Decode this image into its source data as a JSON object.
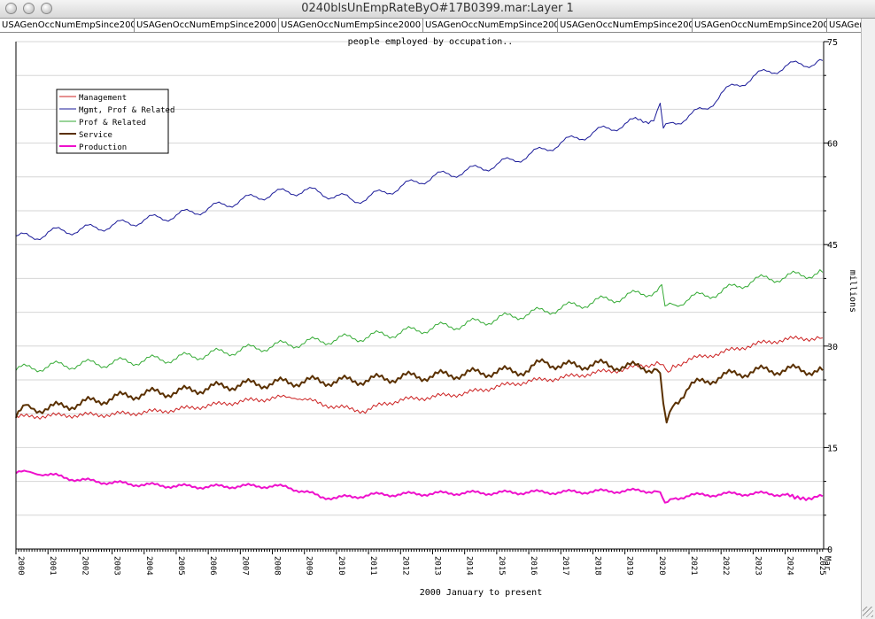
{
  "window": {
    "title": "0240blsUnEmpRateByO#17B0399.mar:Layer 1",
    "tabs": [
      "USAGenOccNumEmpSince2000",
      "USAGenOccNumEmpSince2000",
      "USAGenOccNumEmpSince2000",
      "USAGenOccNumEmpSince2000",
      "USAGenOccNumEmpSince2000",
      "USAGenOccNumEmpSince2000",
      "USAGenO"
    ]
  },
  "chart_data": {
    "type": "line",
    "title": "people employed by occupation..",
    "xlabel": "2000 January to present",
    "ylabel": "millions",
    "xlim": [
      2000.0,
      2025.2
    ],
    "ylim": [
      0,
      75
    ],
    "y_ticks": [
      "0",
      "15",
      "30",
      "45",
      "60",
      "75"
    ],
    "y_tick_values": [
      0,
      15,
      30,
      45,
      60,
      75
    ],
    "x_ticks": [
      "2000",
      "2001",
      "2002",
      "2003",
      "2004",
      "2005",
      "2006",
      "2007",
      "2008",
      "2009",
      "2010",
      "2011",
      "2012",
      "2013",
      "2014",
      "2015",
      "2016",
      "2017",
      "2018",
      "2019",
      "2020",
      "2021",
      "2022",
      "2023",
      "2024",
      "2025",
      "Mar"
    ],
    "x_tick_values": [
      2000,
      2001,
      2002,
      2003,
      2004,
      2005,
      2006,
      2007,
      2008,
      2009,
      2010,
      2011,
      2012,
      2013,
      2014,
      2015,
      2016,
      2017,
      2018,
      2019,
      2020,
      2021,
      2022,
      2023,
      2024,
      2025,
      2025.17
    ],
    "grid": true,
    "legend": "top-left",
    "series": [
      {
        "name": "Management",
        "color": "#cc2222",
        "width": 1,
        "x": [
          2000,
          2001,
          2002,
          2003,
          2004,
          2005,
          2006,
          2007,
          2008,
          2008.7,
          2009.5,
          2010,
          2010.9,
          2011.5,
          2012,
          2013,
          2014,
          2015,
          2016,
          2017,
          2018,
          2019,
          2020,
          2020.2,
          2020.35,
          2020.5,
          2021,
          2022,
          2023,
          2024,
          2025,
          2025.17
        ],
        "y": [
          19.5,
          19.7,
          19.8,
          19.9,
          20.2,
          20.6,
          21.2,
          21.8,
          22.3,
          22.5,
          21.5,
          21.0,
          20.4,
          21.5,
          22.0,
          22.5,
          23.0,
          24.0,
          24.8,
          25.3,
          26.0,
          26.6,
          27.5,
          27.0,
          25.8,
          27.0,
          28.0,
          29.0,
          30.2,
          31.0,
          31.2,
          31.2
        ]
      },
      {
        "name": "Mgmt, Prof & Related",
        "color": "#1a1a99",
        "width": 1,
        "x": [
          2000,
          2000.5,
          2001,
          2002,
          2003,
          2004,
          2005,
          2006,
          2007,
          2008,
          2009,
          2010,
          2010.5,
          2011,
          2012,
          2013,
          2014,
          2015,
          2016,
          2017,
          2018,
          2019,
          2019.9,
          2020.1,
          2020.2,
          2020.35,
          2020.5,
          2021,
          2021.5,
          2022,
          2023,
          2024,
          2025,
          2025.17
        ],
        "y": [
          46.2,
          46.0,
          46.8,
          47.2,
          47.8,
          48.6,
          49.3,
          50.3,
          51.5,
          52.5,
          53.0,
          52.2,
          51.5,
          52.0,
          53.5,
          55.0,
          55.8,
          56.8,
          58.2,
          60.0,
          61.5,
          62.8,
          63.8,
          65.5,
          61.8,
          62.5,
          63.0,
          64.0,
          65.0,
          67.3,
          69.8,
          71.3,
          72.0,
          72.2
        ]
      },
      {
        "name": "Prof & Related",
        "color": "#33aa33",
        "width": 1,
        "x": [
          2000,
          2001,
          2002,
          2003,
          2004,
          2005,
          2006,
          2007,
          2008,
          2009,
          2010,
          2011,
          2012,
          2013,
          2014,
          2015,
          2016,
          2017,
          2018,
          2019,
          2020,
          2020.15,
          2020.25,
          2020.4,
          2021,
          2022,
          2023,
          2024,
          2025,
          2025.17
        ],
        "y": [
          26.5,
          27.0,
          27.3,
          27.5,
          27.9,
          28.2,
          28.8,
          29.4,
          30.0,
          30.5,
          31.0,
          31.4,
          32.0,
          32.7,
          33.2,
          34.0,
          34.8,
          35.6,
          36.5,
          37.3,
          38.2,
          38.6,
          35.2,
          36.0,
          37.0,
          38.0,
          39.7,
          40.2,
          40.8,
          40.9
        ]
      },
      {
        "name": "Service",
        "color": "#5a3000",
        "width": 2,
        "x": [
          2000,
          2000.3,
          2001,
          2002,
          2003,
          2004,
          2005,
          2006,
          2007,
          2008,
          2009,
          2010,
          2011,
          2012,
          2013,
          2014,
          2015,
          2016,
          2016.5,
          2017,
          2018,
          2019,
          2020,
          2020.1,
          2020.2,
          2020.3,
          2020.5,
          2021,
          2021.5,
          2022,
          2023,
          2024,
          2025,
          2025.17
        ],
        "y": [
          19.6,
          20.8,
          20.8,
          21.5,
          22.3,
          23.0,
          23.2,
          23.8,
          24.3,
          24.5,
          24.8,
          24.8,
          25.0,
          25.4,
          25.6,
          25.9,
          26.2,
          26.4,
          27.8,
          27.0,
          27.3,
          27.0,
          26.7,
          25.5,
          21.0,
          18.2,
          21.3,
          24.0,
          24.8,
          25.5,
          26.3,
          26.5,
          26.4,
          26.4
        ]
      },
      {
        "name": "Production",
        "color": "#ee11cc",
        "width": 2,
        "x": [
          2000,
          2000.6,
          2001,
          2002,
          2003,
          2004,
          2005,
          2006,
          2007,
          2008,
          2008.5,
          2009,
          2009.5,
          2010,
          2010.5,
          2011,
          2012,
          2013,
          2014,
          2015,
          2016,
          2017,
          2018,
          2019,
          2020,
          2020.1,
          2020.25,
          2020.5,
          2021,
          2022,
          2023,
          2024,
          2024.3,
          2025,
          2025.17
        ],
        "y": [
          11.3,
          11.3,
          11.0,
          10.2,
          9.8,
          9.5,
          9.3,
          9.2,
          9.3,
          9.3,
          9.1,
          8.5,
          7.7,
          7.6,
          7.7,
          8.0,
          8.1,
          8.2,
          8.3,
          8.3,
          8.4,
          8.4,
          8.5,
          8.6,
          8.6,
          8.3,
          6.5,
          7.5,
          7.9,
          8.1,
          8.2,
          8.1,
          7.4,
          7.8,
          7.8
        ]
      }
    ]
  }
}
